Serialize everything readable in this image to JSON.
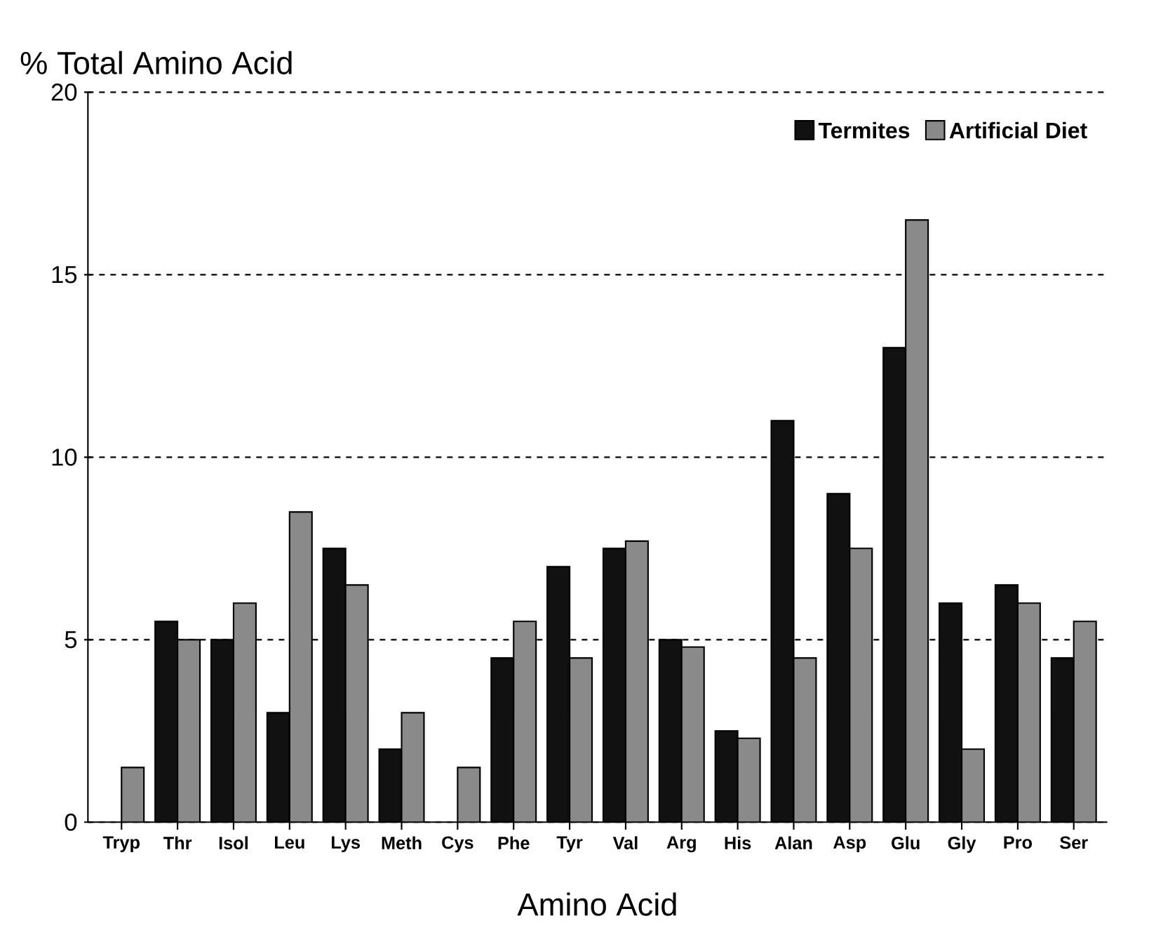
{
  "chart_data": {
    "type": "bar",
    "ylabel": "% Total Amino Acid",
    "xlabel": "Amino Acid",
    "categories": [
      "Tryp",
      "Thr",
      "Isol",
      "Leu",
      "Lys",
      "Meth",
      "Cys",
      "Phe",
      "Tyr",
      "Val",
      "Arg",
      "His",
      "Alan",
      "Asp",
      "Glu",
      "Gly",
      "Pro",
      "Ser"
    ],
    "series": [
      {
        "name": "Termites",
        "color": "#111111",
        "values": [
          null,
          5.5,
          5.0,
          3.0,
          7.5,
          2.0,
          null,
          4.5,
          7.0,
          7.5,
          5.0,
          2.5,
          11.0,
          9.0,
          13.0,
          6.0,
          6.5,
          4.5
        ]
      },
      {
        "name": "Artificial Diet",
        "color": "#8a8a8a",
        "values": [
          1.5,
          5.0,
          6.0,
          8.5,
          6.5,
          3.0,
          1.5,
          5.5,
          4.5,
          7.7,
          4.8,
          2.3,
          4.5,
          7.5,
          16.5,
          2.0,
          6.0,
          5.5
        ]
      }
    ],
    "ylim": [
      0,
      20
    ],
    "yticks": [
      0,
      5,
      10,
      15,
      20
    ],
    "grid": "y",
    "legend": "top right"
  }
}
